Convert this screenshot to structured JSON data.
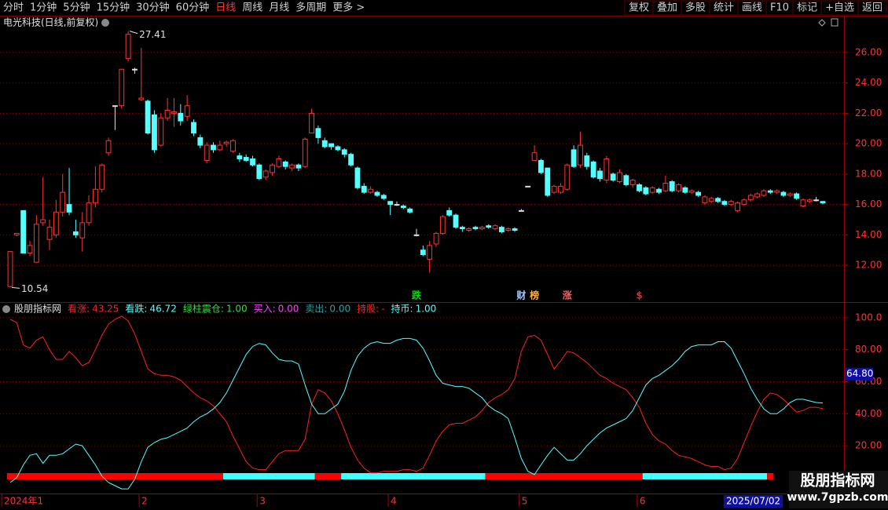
{
  "toolbar": {
    "left": [
      "分时",
      "1分钟",
      "5分钟",
      "15分钟",
      "30分钟",
      "60分钟",
      "日线",
      "周线",
      "月线",
      "多周期",
      "更多 >"
    ],
    "active_index": 6,
    "right": [
      "复权",
      "叠加",
      "多股",
      "统计",
      "画线",
      "F10",
      "标记",
      "+自选",
      "返回"
    ]
  },
  "chart_data": [
    {
      "type": "candlestick",
      "title": "电光科技(日线,前复权)",
      "up_color": "#ff3232",
      "down_color": "#54ffff",
      "flat_color": "#e0e0e0",
      "open": [
        10.6,
        14.0,
        15.6,
        12.8,
        12.2,
        14.8,
        13.7,
        14.0,
        15.5,
        16.0,
        14.2,
        13.8,
        14.8,
        16.1,
        17.0,
        19.4,
        22.5,
        22.5,
        25.6,
        24.9,
        22.9,
        22.8,
        21.9,
        19.9,
        21.7,
        22.0,
        22.0,
        21.8,
        21.4,
        20.4,
        18.9,
        19.9,
        19.6,
        20.0,
        19.5,
        19.2,
        19.1,
        19.0,
        18.6,
        17.8,
        18.1,
        18.5,
        18.8,
        18.4,
        18.6,
        18.5,
        20.7,
        21.0,
        20.2,
        20.0,
        19.8,
        19.6,
        19.3,
        18.4,
        17.2,
        16.8,
        16.8,
        16.6,
        16.2,
        16.0,
        15.9,
        15.7,
        14.0,
        13.0,
        12.4,
        13.4,
        14.1,
        15.6,
        15.3,
        14.5,
        14.3,
        14.5,
        14.4,
        14.6,
        14.4,
        14.5,
        14.3,
        14.4,
        15.6,
        17.2,
        18.9,
        18.9,
        18.4,
        16.8,
        16.8,
        17.0,
        19.6,
        18.6,
        19.2,
        18.8,
        18.2,
        17.6,
        18.0,
        17.5,
        17.9,
        17.3,
        17.3,
        17.1,
        16.8,
        17.0,
        16.9,
        17.5,
        16.9,
        17.1,
        16.8,
        16.8,
        16.1,
        16.2,
        16.4,
        16.2,
        16.0,
        15.6,
        16.0,
        16.3,
        16.5,
        16.6,
        16.9,
        16.8,
        16.8,
        16.6,
        16.7,
        15.9,
        16.2,
        16.3,
        16.2
      ],
      "high": [
        12.9,
        14.1,
        15.6,
        13.6,
        15.3,
        17.8,
        15.0,
        16.3,
        18.0,
        18.4,
        15.0,
        15.5,
        16.6,
        18.5,
        18.7,
        20.4,
        22.5,
        24.9,
        27.41,
        25.0,
        26.3,
        22.9,
        22.2,
        22.0,
        23.0,
        23.0,
        22.6,
        23.2,
        21.6,
        20.6,
        20.1,
        20.1,
        20.2,
        20.2,
        20.3,
        19.4,
        19.3,
        19.2,
        18.7,
        18.3,
        18.7,
        19.2,
        18.9,
        18.7,
        18.7,
        20.4,
        22.3,
        21.2,
        20.4,
        20.0,
        19.9,
        19.7,
        19.4,
        18.5,
        17.4,
        17.2,
        16.9,
        16.7,
        16.2,
        16.2,
        16.0,
        15.8,
        14.4,
        13.3,
        13.6,
        14.2,
        15.3,
        15.8,
        15.4,
        14.6,
        14.5,
        14.6,
        14.6,
        14.7,
        14.7,
        14.6,
        14.5,
        14.5,
        15.7,
        17.2,
        19.9,
        19.0,
        18.4,
        17.3,
        17.4,
        18.7,
        19.9,
        20.8,
        19.4,
        18.9,
        18.4,
        19.2,
        18.1,
        18.3,
        18.0,
        17.7,
        17.4,
        17.2,
        17.2,
        17.1,
        17.9,
        17.6,
        17.4,
        17.2,
        17.0,
        16.9,
        16.6,
        16.5,
        16.5,
        16.3,
        16.3,
        16.2,
        16.4,
        16.7,
        16.8,
        17.0,
        17.0,
        17.0,
        16.9,
        16.8,
        16.8,
        16.4,
        16.4,
        16.5,
        16.2
      ],
      "low": [
        10.54,
        13.9,
        12.8,
        12.6,
        12.2,
        14.6,
        13.0,
        13.8,
        15.2,
        15.3,
        13.8,
        12.9,
        14.6,
        15.8,
        16.8,
        19.2,
        20.9,
        22.3,
        25.4,
        24.6,
        22.8,
        20.6,
        19.4,
        19.8,
        21.5,
        21.1,
        21.2,
        21.5,
        20.5,
        19.7,
        18.7,
        19.4,
        19.5,
        19.8,
        19.4,
        18.8,
        18.8,
        18.5,
        17.6,
        17.6,
        17.9,
        18.4,
        18.3,
        18.2,
        18.2,
        18.4,
        20.7,
        20.0,
        19.7,
        19.6,
        19.5,
        19.1,
        18.5,
        17.0,
        16.7,
        16.7,
        16.5,
        16.3,
        15.3,
        15.9,
        15.7,
        15.4,
        13.9,
        12.6,
        11.5,
        13.2,
        14.0,
        15.2,
        14.4,
        14.2,
        14.2,
        14.3,
        14.3,
        14.4,
        14.3,
        14.1,
        14.2,
        14.2,
        15.6,
        17.2,
        18.9,
        18.0,
        16.5,
        16.7,
        16.7,
        16.9,
        18.4,
        18.4,
        18.3,
        17.7,
        17.5,
        17.4,
        17.5,
        17.4,
        17.2,
        17.1,
        16.8,
        16.6,
        16.7,
        16.7,
        16.8,
        16.8,
        16.8,
        16.7,
        16.7,
        16.5,
        16.0,
        16.1,
        16.1,
        15.9,
        15.9,
        15.5,
        15.9,
        16.2,
        16.4,
        16.5,
        16.7,
        16.7,
        16.5,
        16.5,
        16.3,
        15.8,
        16.1,
        16.2,
        16.0
      ],
      "close": [
        12.9,
        14.1,
        12.8,
        13.3,
        14.7,
        15.0,
        14.5,
        15.5,
        16.8,
        15.5,
        14.0,
        14.8,
        16.1,
        17.0,
        18.6,
        20.2,
        22.5,
        24.9,
        27.2,
        24.9,
        23.0,
        20.7,
        19.6,
        21.7,
        22.2,
        22.1,
        21.5,
        22.5,
        20.7,
        19.9,
        19.9,
        19.6,
        19.9,
        20.1,
        20.2,
        19.0,
        18.9,
        18.6,
        17.7,
        18.2,
        18.6,
        19.0,
        18.5,
        18.6,
        18.4,
        20.3,
        22.0,
        20.4,
        19.8,
        19.8,
        19.6,
        19.3,
        18.6,
        17.1,
        16.8,
        17.0,
        16.6,
        16.4,
        16.0,
        16.0,
        15.8,
        15.5,
        14.0,
        12.7,
        13.3,
        14.1,
        15.2,
        15.3,
        14.5,
        14.4,
        14.4,
        14.4,
        14.5,
        14.5,
        14.6,
        14.2,
        14.4,
        14.3,
        15.6,
        17.2,
        19.4,
        18.1,
        16.6,
        17.2,
        17.2,
        18.6,
        18.5,
        19.9,
        18.5,
        17.8,
        17.7,
        19.0,
        17.6,
        18.1,
        17.3,
        17.6,
        16.9,
        16.7,
        17.1,
        16.8,
        17.4,
        16.9,
        17.3,
        16.8,
        16.9,
        16.6,
        16.5,
        16.4,
        16.2,
        16.0,
        16.2,
        16.1,
        16.3,
        16.6,
        16.7,
        16.9,
        16.8,
        16.9,
        16.6,
        16.7,
        16.4,
        16.3,
        16.3,
        16.3,
        16.1
      ],
      "ylim": [
        9.68,
        28.32
      ],
      "yticks": [
        {
          "value": 12,
          "label": "12.00"
        },
        {
          "value": 14,
          "label": "14.00"
        },
        {
          "value": 16,
          "label": "16.00"
        },
        {
          "value": 18,
          "label": "18.00"
        },
        {
          "value": 20,
          "label": "20.00"
        },
        {
          "value": 22,
          "label": "22.00"
        },
        {
          "value": 24,
          "label": "24.00"
        },
        {
          "value": 26,
          "label": "26.00"
        }
      ],
      "grid": true,
      "signals": [
        {
          "text": "跌",
          "index": 62,
          "color": "#00e000"
        },
        {
          "text": "财",
          "index": 78,
          "color": "#a0c8ff"
        },
        {
          "text": "榜",
          "index": 80,
          "color": "#ffb040"
        },
        {
          "text": "涨",
          "index": 85,
          "color": "#ff6060"
        },
        {
          "text": "$",
          "index": 96,
          "color": "#ff2020"
        }
      ]
    },
    {
      "type": "line",
      "title": "股朋指标网",
      "series": [
        {
          "name": "看涨:",
          "color": "#ff2020",
          "values": [
            99,
            97,
            83,
            81,
            86,
            88,
            80,
            74,
            74,
            79,
            75,
            70,
            72,
            80,
            89,
            96,
            99,
            101,
            98,
            90,
            79,
            68,
            65,
            64,
            64,
            63,
            61,
            57,
            53,
            50,
            48,
            45,
            40,
            35,
            26,
            18,
            10,
            6,
            5,
            5,
            10,
            15,
            17,
            17,
            17,
            24,
            46,
            55,
            53,
            48,
            40,
            30,
            19,
            11,
            6,
            3,
            3,
            4,
            4,
            4,
            5,
            5,
            4,
            6,
            14,
            23,
            29,
            33,
            34,
            34,
            36,
            38,
            42,
            47,
            50,
            52,
            55,
            62,
            79,
            88,
            89,
            86,
            77,
            68,
            73,
            79,
            78,
            75,
            72,
            68,
            64,
            62,
            59,
            57,
            55,
            50,
            44,
            34,
            27,
            23,
            21,
            17,
            14,
            13,
            12,
            10,
            8,
            7,
            7,
            5,
            6,
            12,
            22,
            32,
            41,
            49,
            53,
            52,
            49,
            45,
            41,
            42,
            44,
            44,
            43.25
          ]
        },
        {
          "name": "看跌:",
          "color": "#54ffff",
          "values": [
            -3,
            0,
            8,
            14,
            15,
            9,
            14,
            14,
            15,
            18,
            21,
            20,
            14,
            8,
            1,
            -3,
            -5,
            -7,
            -7,
            -1,
            10,
            19,
            22,
            24,
            25,
            27,
            29,
            31,
            35,
            38,
            40,
            43,
            47,
            53,
            61,
            69,
            77,
            82,
            84,
            83,
            78,
            74,
            73,
            73,
            71,
            58,
            46,
            40,
            40,
            43,
            46,
            54,
            67,
            76,
            81,
            84,
            85,
            84,
            84,
            86,
            87,
            87,
            86,
            81,
            73,
            64,
            59,
            58,
            57,
            57,
            56,
            53,
            50,
            45,
            42,
            40,
            37,
            25,
            12,
            4,
            2,
            8,
            14,
            19,
            15,
            11,
            11,
            15,
            20,
            24,
            28,
            31,
            33,
            35,
            37,
            42,
            50,
            58,
            62,
            64,
            67,
            70,
            74,
            79,
            82,
            83,
            83,
            83,
            85,
            85,
            81,
            73,
            65,
            56,
            49,
            43,
            40,
            40,
            43,
            47,
            49,
            49,
            48,
            47,
            46.72
          ]
        }
      ],
      "extra_legend": [
        {
          "label": "绿柱震仓:",
          "value": "1.00",
          "color": "#30e030"
        },
        {
          "label": "买入:",
          "value": "0.00",
          "color": "#ff40ff"
        },
        {
          "label": "卖出:",
          "value": "0.00",
          "color": "#30a0a0"
        },
        {
          "label": "持股:",
          "value": "-",
          "color": "#ff2020"
        },
        {
          "label": "持币:",
          "value": "1.00",
          "color": "#54ffff"
        }
      ],
      "state_segments": [
        {
          "from": 0,
          "to": 32,
          "color": "#ff0000"
        },
        {
          "from": 33,
          "to": 46,
          "color": "#40ffff"
        },
        {
          "from": 47,
          "to": 50,
          "color": "#ff0000"
        },
        {
          "from": 51,
          "to": 72,
          "color": "#40ffff"
        },
        {
          "from": 73,
          "to": 96,
          "color": "#ff0000"
        },
        {
          "from": 97,
          "to": 115,
          "color": "#40ffff"
        },
        {
          "from": 116,
          "to": 116,
          "color": "#ff0000"
        }
      ],
      "cursor_value": {
        "value": 64.8,
        "label": "64.80"
      },
      "ylim": [
        -9.4,
        108.8
      ],
      "yticks": [
        {
          "value": 20,
          "label": "20.00"
        },
        {
          "value": 40,
          "label": "40.00"
        },
        {
          "value": 60,
          "label": "60.00"
        },
        {
          "value": 80,
          "label": "80.00"
        },
        {
          "value": 100,
          "label": "100.0"
        }
      ],
      "grid": true
    }
  ],
  "x_axis": {
    "labels": [
      {
        "text": "2024年1",
        "index": 0
      },
      {
        "text": "2",
        "index": 21
      },
      {
        "text": "3",
        "index": 39
      },
      {
        "text": "4",
        "index": 59
      },
      {
        "text": "5",
        "index": 79
      },
      {
        "text": "6",
        "index": 97
      }
    ],
    "cursor_date": "2025/07/02"
  },
  "watermark": {
    "name": "股朋指标网",
    "url": "www.7gpzb.com"
  }
}
